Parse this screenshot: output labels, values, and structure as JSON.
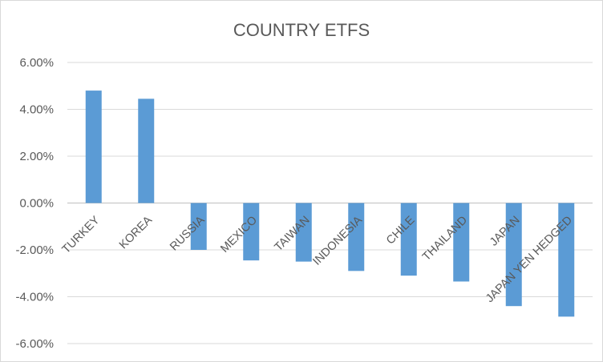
{
  "chart_data": {
    "type": "bar",
    "title": "COUNTRY ETFS",
    "categories": [
      "TURKEY",
      "KOREA",
      "RUSSIA",
      "MEXICO",
      "TAIWAN",
      "INDONESIA",
      "CHILE",
      "THAILAND",
      "JAPAN",
      "JAPAN YEN HEDGED"
    ],
    "values": [
      4.8,
      4.45,
      -2.0,
      -2.45,
      -2.5,
      -2.9,
      -3.1,
      -3.35,
      -4.4,
      -4.85
    ],
    "value_format": "percent_2dp",
    "ylim": [
      -6,
      6
    ],
    "yticks": [
      6,
      4,
      2,
      0,
      -2,
      -4,
      -6
    ],
    "ytick_labels": [
      "6.00%",
      "4.00%",
      "2.00%",
      "0.00%",
      "-2.00%",
      "-4.00%",
      "-6.00%"
    ],
    "grid": true,
    "legend": "none",
    "bar_color": "#5b9bd5"
  }
}
